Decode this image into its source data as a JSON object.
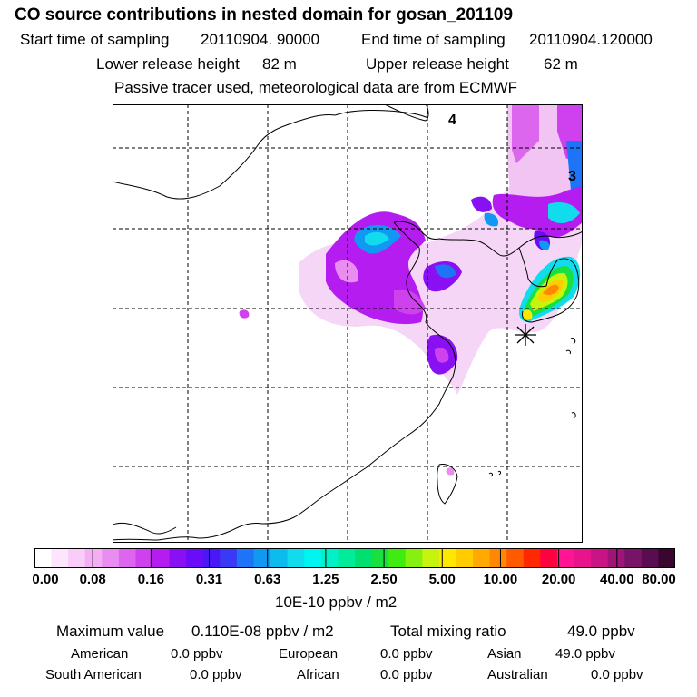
{
  "title": "CO  source contributions in nested domain for gosan_201109",
  "header": {
    "start_label": "Start time of sampling",
    "start_value": "20110904. 90000",
    "end_label": "End time of sampling",
    "end_value": "20110904.120000",
    "lower_label": "Lower release height",
    "lower_value": "82 m",
    "upper_label": "Upper release height",
    "upper_value": "62 m",
    "tracer_note": "Passive tracer used, meteorological data are from ECMWF"
  },
  "map": {
    "region_labels": [
      "4",
      "3"
    ],
    "receptor_marker": "asterisk"
  },
  "colorbar": {
    "ticks": [
      "0.00",
      "0.08",
      "0.16",
      "0.31",
      "0.63",
      "1.25",
      "2.50",
      "5.00",
      "10.00",
      "20.00",
      "40.00",
      "80.00"
    ],
    "units": "10E-10 ppbv / m2",
    "colors": [
      "#ffffff",
      "#fde6fd",
      "#f9ccf9",
      "#f2b0f2",
      "#e98ef0",
      "#dd66ee",
      "#cf40ee",
      "#b41cf0",
      "#8a10f4",
      "#6a0cf7",
      "#4a18f6",
      "#3a3af6",
      "#1d74f6",
      "#1098f2",
      "#0dbcee",
      "#10dcee",
      "#00f5f0",
      "#00f0c8",
      "#00ec9a",
      "#00e070",
      "#18e040",
      "#40ec10",
      "#86f010",
      "#c6f40c",
      "#ffe800",
      "#ffcc00",
      "#ffaa00",
      "#ff8800",
      "#ff5a00",
      "#ff2800",
      "#ff0040",
      "#ff1493",
      "#e8148c",
      "#c81484",
      "#a01478",
      "#781468",
      "#5a0c50",
      "#3a0630"
    ]
  },
  "summary": {
    "max_label": "Maximum value",
    "max_value": "0.110E-08 ppbv / m2",
    "total_label": "Total mixing ratio",
    "total_value": "49.0 ppbv",
    "regions": [
      {
        "name": "American",
        "value": "0.0 ppbv"
      },
      {
        "name": "European",
        "value": "0.0 ppbv"
      },
      {
        "name": "Asian",
        "value": "49.0 ppbv"
      },
      {
        "name": "South American",
        "value": "0.0 ppbv"
      },
      {
        "name": "African",
        "value": "0.0 ppbv"
      },
      {
        "name": "Australian",
        "value": "0.0 ppbv"
      }
    ]
  }
}
